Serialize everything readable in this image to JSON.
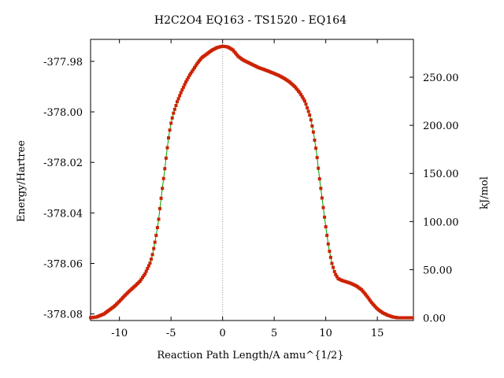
{
  "chart_data": {
    "type": "line",
    "title": "H2C2O4    EQ163 - TS1520 - EQ164",
    "xlabel": "Reaction Path Length/A amu^{1/2}",
    "ylabel": "Energy/Hartree",
    "y2label": "kJ/mol",
    "xlim": [
      -12.8,
      18.5
    ],
    "ylim": [
      -378.0826,
      -377.9713
    ],
    "x_ticks": [
      -10,
      -5,
      0,
      5,
      10,
      15
    ],
    "x_tick_labels": [
      "-10",
      "-5",
      "0",
      "5",
      "10",
      "15"
    ],
    "y_ticks": [
      -377.98,
      -378.0,
      -378.02,
      -378.04,
      -378.06,
      -378.08
    ],
    "y_tick_labels": [
      "-377.98",
      "-378.00",
      "-378.02",
      "-378.04",
      "-378.06",
      "-378.08"
    ],
    "y2_ticks": [
      0,
      50,
      100,
      150,
      200,
      250
    ],
    "y2_tick_labels": [
      "0.00",
      "50.00",
      "100.00",
      "150.00",
      "200.00",
      "250.00"
    ],
    "y2_zero_hartree": -378.0815,
    "ts_x": 0,
    "colors": {
      "line": "#00a000",
      "marker": "#cc2200",
      "ts_line": "#999999",
      "axis": "#000000"
    },
    "series": [
      {
        "x": [
          -12.8,
          -12.2,
          -11.5,
          -11.0,
          -10.5,
          -10.0,
          -9.5,
          -9.0,
          -8.5,
          -8.0,
          -7.5,
          -7.0,
          -6.8,
          -6.6,
          -6.4,
          -6.2,
          -6.0,
          -5.8,
          -5.6,
          -5.4,
          -5.2,
          -5.0,
          -4.8,
          -4.6,
          -4.4,
          -4.2,
          -4.0,
          -3.6,
          -3.2,
          -2.8,
          -2.4,
          -2.0,
          -1.5,
          -1.0,
          -0.5,
          0.0,
          0.5,
          1.0,
          1.5,
          2.0,
          2.5,
          3.0,
          3.5,
          4.0,
          4.5,
          5.0,
          5.5,
          6.0,
          6.5,
          7.0,
          7.5,
          8.0,
          8.5,
          8.8,
          9.1,
          9.4,
          9.7,
          10.0,
          10.3,
          10.6,
          10.9,
          11.2,
          11.6,
          12.0,
          12.5,
          13.0,
          13.5,
          14.0,
          14.5,
          15.0,
          15.5,
          16.0,
          16.5,
          17.0,
          17.5,
          18.0,
          18.5
        ],
        "y": [
          -378.0815,
          -378.0812,
          -378.08,
          -378.0785,
          -378.077,
          -378.075,
          -378.0728,
          -378.0708,
          -378.069,
          -378.067,
          -378.064,
          -378.0595,
          -378.0565,
          -378.0525,
          -378.048,
          -378.0425,
          -378.0355,
          -378.029,
          -378.0225,
          -378.0155,
          -378.009,
          -378.0045,
          -378.001,
          -377.9985,
          -377.996,
          -377.994,
          -377.992,
          -377.9885,
          -377.9855,
          -377.983,
          -377.9805,
          -377.9785,
          -377.977,
          -377.9755,
          -377.9745,
          -377.974,
          -377.9743,
          -377.9755,
          -377.978,
          -377.9795,
          -377.9805,
          -377.9815,
          -377.9825,
          -377.9832,
          -377.984,
          -377.9848,
          -377.9857,
          -377.9868,
          -377.9882,
          -377.99,
          -377.9925,
          -377.996,
          -378.002,
          -378.008,
          -378.016,
          -378.0265,
          -378.036,
          -378.0455,
          -378.054,
          -378.06,
          -378.064,
          -378.066,
          -378.0668,
          -378.0673,
          -378.068,
          -378.069,
          -378.0705,
          -378.073,
          -378.0758,
          -378.078,
          -378.0795,
          -378.0805,
          -378.0812,
          -378.0815,
          -378.0815,
          -378.0815,
          -378.0815
        ]
      }
    ]
  }
}
